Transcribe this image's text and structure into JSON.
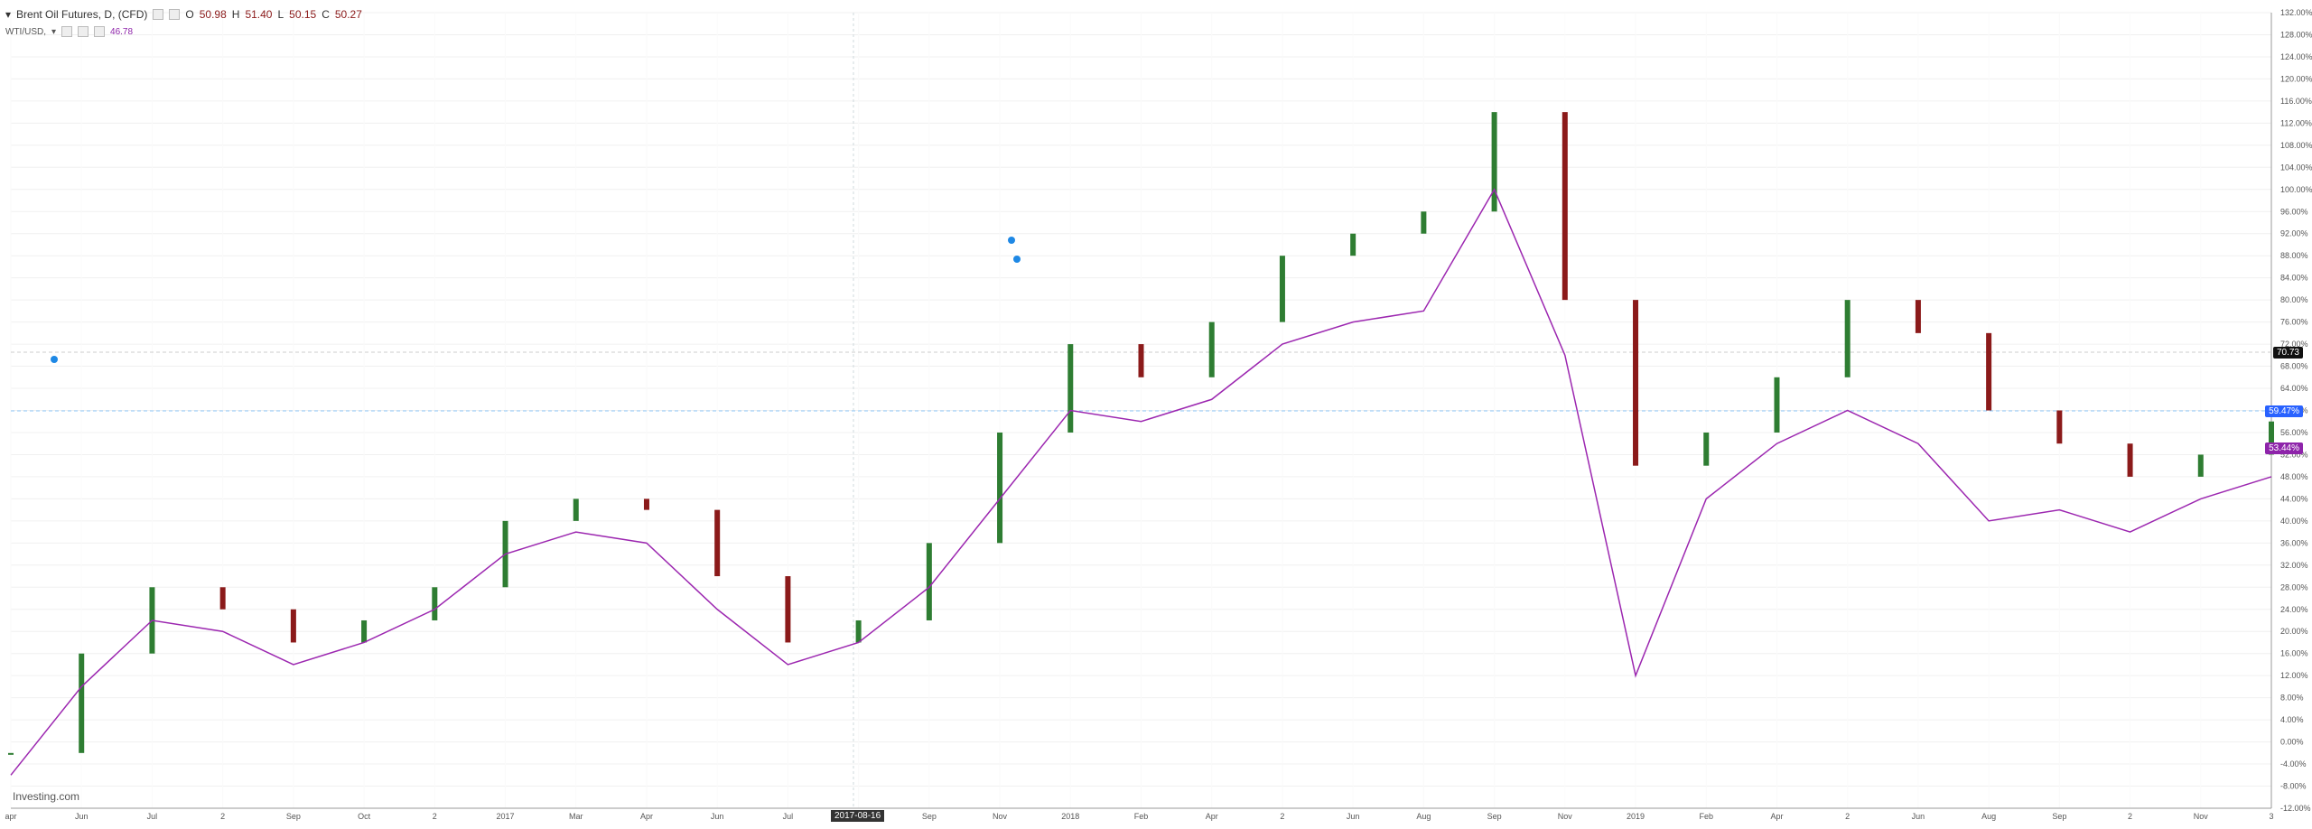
{
  "legend": {
    "primary_title": "Brent Oil Futures, D, (CFD)",
    "primary_values": {
      "O": "50.98",
      "H": "51.40",
      "L": "50.15",
      "C": "50.27"
    },
    "secondary_title": "WTI/USD,",
    "secondary_value": "46.78"
  },
  "brand": {
    "name": "Investing",
    "suffix": ".com"
  },
  "crosshair": {
    "date_label": "2017-08-16"
  },
  "tags": {
    "dark": "70.73",
    "blue": "59.47%",
    "purple": "53.44%"
  },
  "chart_data": {
    "type": "line",
    "x": [
      "apr",
      "Jun",
      "Jul",
      "2",
      "Sep",
      "Oct",
      "2",
      "2017",
      "Mar",
      "Apr",
      "Jun",
      "Jul",
      "2",
      "Sep",
      "Nov",
      "2018",
      "Feb",
      "Apr",
      "2",
      "Jun",
      "Aug",
      "Sep",
      "Nov",
      "2019",
      "Feb",
      "Apr",
      "2",
      "Jun",
      "Aug",
      "Sep",
      "2",
      "Nov",
      "3"
    ],
    "series": [
      {
        "name": "Brent Oil Futures",
        "values": [
          -2,
          16,
          28,
          24,
          18,
          22,
          28,
          40,
          44,
          42,
          30,
          18,
          22,
          36,
          56,
          72,
          66,
          76,
          88,
          92,
          96,
          114,
          80,
          50,
          56,
          66,
          80,
          74,
          60,
          54,
          48,
          52,
          58
        ]
      },
      {
        "name": "WTI/USD",
        "values": [
          -6,
          10,
          22,
          20,
          14,
          18,
          24,
          34,
          38,
          36,
          24,
          14,
          18,
          28,
          44,
          60,
          58,
          62,
          72,
          76,
          78,
          100,
          70,
          12,
          44,
          54,
          60,
          54,
          40,
          42,
          38,
          44,
          48
        ]
      }
    ],
    "y_ticks": [
      "132.00%",
      "128.00%",
      "124.00%",
      "120.00%",
      "116.00%",
      "112.00%",
      "108.00%",
      "104.00%",
      "100.00%",
      "96.00%",
      "92.00%",
      "88.00%",
      "84.00%",
      "80.00%",
      "76.00%",
      "72.00%",
      "68.00%",
      "64.00%",
      "60.00%",
      "56.00%",
      "52.00%",
      "48.00%",
      "44.00%",
      "40.00%",
      "36.00%",
      "32.00%",
      "28.00%",
      "24.00%",
      "20.00%",
      "16.00%",
      "12.00%",
      "8.00%",
      "4.00%",
      "0.00%",
      "-4.00%",
      "-8.00%",
      "-12.00%"
    ],
    "x_tick_labels": [
      "apr",
      "Jun",
      "Jul",
      "2",
      "Sep",
      "Oct",
      "2",
      "2017",
      "Mar",
      "Apr",
      "Jun",
      "Jul",
      "2",
      "Sep",
      "Nov",
      "2018",
      "Feb",
      "Apr",
      "2",
      "Jun",
      "Aug",
      "Sep",
      "Nov",
      "2019",
      "Feb",
      "Apr",
      "2",
      "Jun",
      "Aug",
      "Sep",
      "2",
      "Nov",
      "3"
    ],
    "ylim": [
      -12,
      132
    ],
    "grid": true,
    "colors": {
      "up": "#2e7d32",
      "down": "#8b1a1a",
      "line": "#9c27b0",
      "crosshair": "#cfd8dc",
      "blue_line": "#90caf9"
    }
  }
}
